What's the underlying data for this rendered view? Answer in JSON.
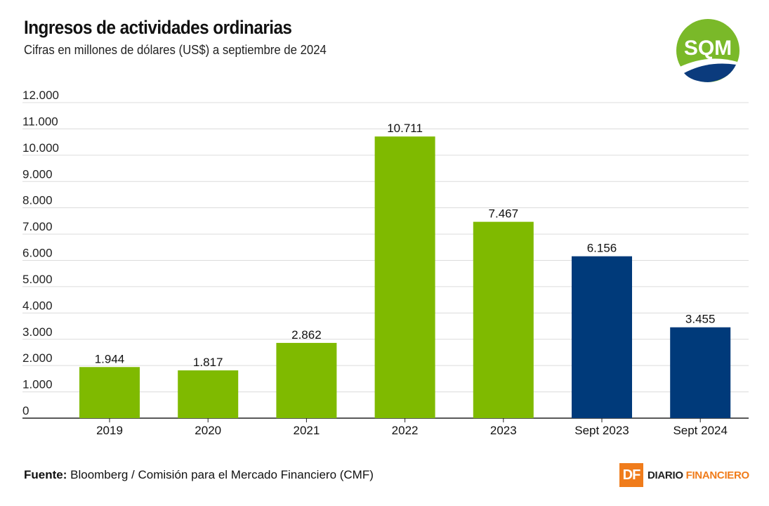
{
  "header": {
    "title": "Ingresos de actividades ordinarias",
    "subtitle": "Cifras en millones de dólares (US$) a septiembre de 2024"
  },
  "logo": {
    "text": "SQM",
    "colors": {
      "green": "#7ab929",
      "blue": "#0b3b7d"
    }
  },
  "chart_data": {
    "type": "bar",
    "categories": [
      "2019",
      "2020",
      "2021",
      "2022",
      "2023",
      "Sept 2023",
      "Sept 2024"
    ],
    "values": [
      1944,
      1817,
      2862,
      10711,
      7467,
      6156,
      3455
    ],
    "value_labels": [
      "1.944",
      "1.817",
      "2.862",
      "10.711",
      "7.467",
      "6.156",
      "3.455"
    ],
    "bar_colors": [
      "#7fba00",
      "#7fba00",
      "#7fba00",
      "#7fba00",
      "#7fba00",
      "#003a7a",
      "#003a7a"
    ],
    "ylim": [
      0,
      12000
    ],
    "yticks": [
      0,
      1000,
      2000,
      3000,
      4000,
      5000,
      6000,
      7000,
      8000,
      9000,
      10000,
      11000,
      12000
    ],
    "ytick_labels": [
      "0",
      "1.000",
      "2.000",
      "3.000",
      "4.000",
      "5.000",
      "6.000",
      "7.000",
      "8.000",
      "9.000",
      "10.000",
      "11.000",
      "12.000"
    ],
    "grid": true,
    "title": "",
    "xlabel": "",
    "ylabel": ""
  },
  "footer": {
    "source_label": "Fuente:",
    "source_text": "Bloomberg / Comisión para el Mercado Financiero (CMF)",
    "brand_badge": "DF",
    "brand_word1": "DIARIO",
    "brand_word2": "FINANCIERO"
  }
}
